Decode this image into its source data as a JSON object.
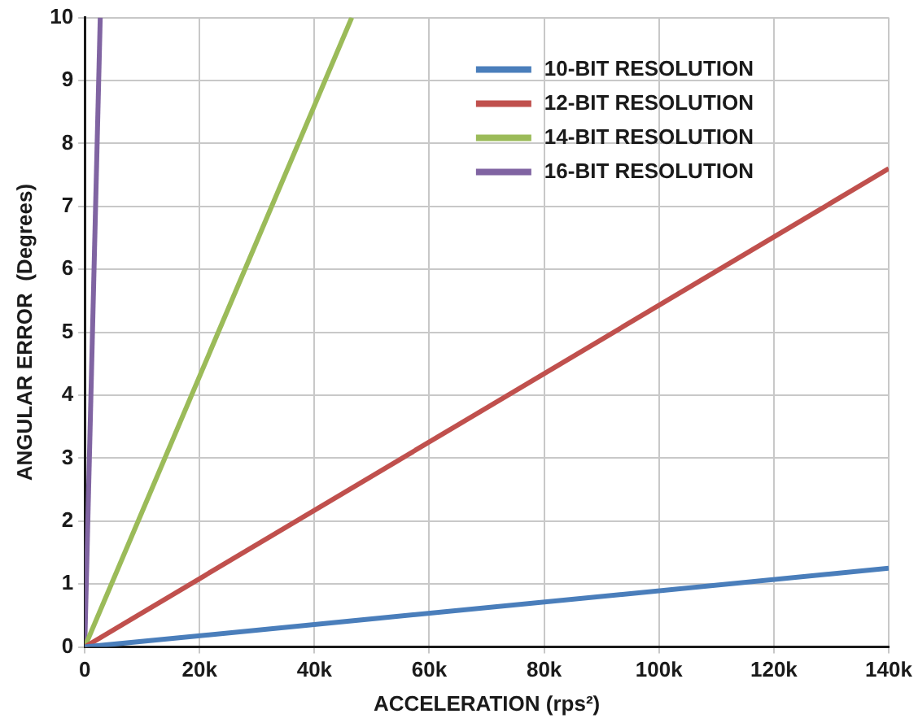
{
  "chart_data": {
    "type": "line",
    "xlabel": "ACCELERATION (rps²)",
    "ylabel": "ANGULAR ERROR  (Degrees)",
    "xlim": [
      0,
      140000
    ],
    "ylim": [
      0,
      10
    ],
    "xticks": [
      0,
      {
        "value": 20000,
        "label": "20k"
      },
      {
        "value": 40000,
        "label": "40k"
      },
      {
        "value": 60000,
        "label": "60k"
      },
      {
        "value": 80000,
        "label": "80k"
      },
      {
        "value": 100000,
        "label": "100k"
      },
      {
        "value": 120000,
        "label": "120k"
      },
      {
        "value": 140000,
        "label": "140k"
      }
    ],
    "yticks": [
      0,
      1,
      2,
      3,
      4,
      5,
      6,
      7,
      8,
      9,
      10
    ],
    "grid": true,
    "legend": "top right",
    "marker": "none",
    "line_style": "solid",
    "series": [
      {
        "name": "10-BIT RESOLUTION",
        "color": "#4a7ebb",
        "x": [
          0,
          140000
        ],
        "values": [
          0,
          1.25
        ]
      },
      {
        "name": "12-BIT RESOLUTION",
        "color": "#c0504d",
        "x": [
          0,
          140000
        ],
        "values": [
          0,
          7.6
        ]
      },
      {
        "name": "14-BIT RESOLUTION",
        "color": "#9bbb59",
        "x": [
          0,
          46500
        ],
        "values": [
          0,
          10
        ]
      },
      {
        "name": "16-BIT RESOLUTION",
        "color": "#8064a2",
        "x": [
          0,
          2700
        ],
        "values": [
          0,
          10
        ]
      }
    ]
  }
}
